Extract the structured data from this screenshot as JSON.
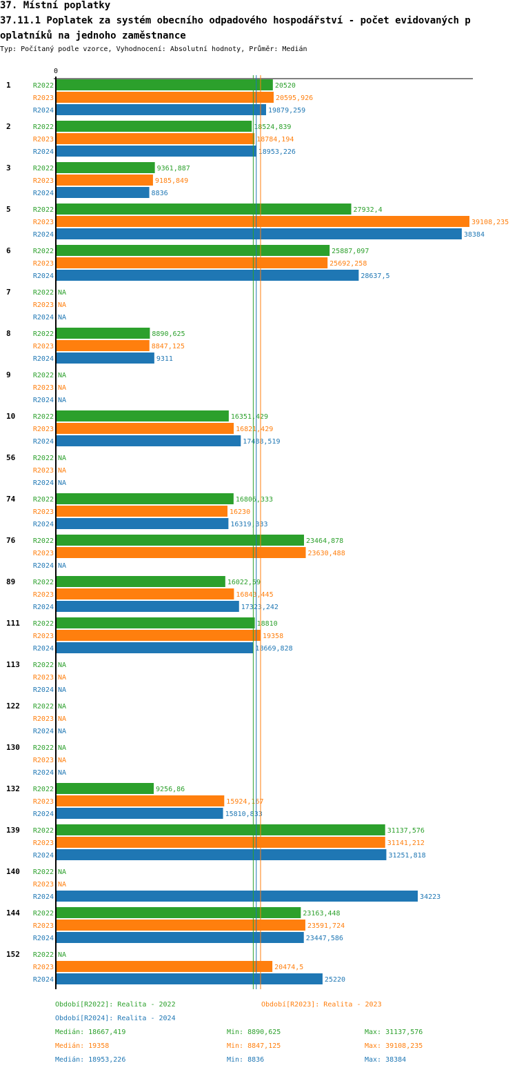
{
  "header": {
    "section_title": "37. Místní poplatky",
    "chart_title_line1": "37.11.1 Poplatek za systém obecního odpadového hospodářství - počet evidovaných p",
    "chart_title_line2": "oplatníků na jednoho zaměstnance",
    "subtitle": "Typ: Počítaný podle vzorce, Vyhodnocení: Absolutní hodnoty, Průměr: Medián"
  },
  "colors": {
    "R2022": "#2ca02c",
    "R2023": "#ff7f0e",
    "R2024": "#1f77b4"
  },
  "chart_data": {
    "type": "bar",
    "orientation": "horizontal",
    "title": "37.11.1 Poplatek za systém obecního odpadového hospodářství - počet evidovaných poplatníků na jednoho zaměstnance",
    "axis_zero_label": "0",
    "xlim": [
      0,
      39108.235
    ],
    "na_label": "NA",
    "categories": [
      "1",
      "2",
      "3",
      "5",
      "6",
      "7",
      "8",
      "9",
      "10",
      "56",
      "74",
      "76",
      "89",
      "111",
      "113",
      "122",
      "130",
      "132",
      "139",
      "140",
      "144",
      "152"
    ],
    "series": [
      {
        "name": "R2022",
        "values": [
          20520,
          18524.839,
          9361.887,
          27932.4,
          25887.097,
          null,
          8890.625,
          null,
          16351.429,
          null,
          16806.333,
          23464.878,
          16022.59,
          18810,
          null,
          null,
          null,
          9256.86,
          31137.576,
          null,
          23163.448,
          null
        ],
        "labels": [
          "20520",
          "18524,839",
          "9361,887",
          "27932,4",
          "25887,097",
          "NA",
          "8890,625",
          "NA",
          "16351,429",
          "NA",
          "16806,333",
          "23464,878",
          "16022,59",
          "18810",
          "NA",
          "NA",
          "NA",
          "9256,86",
          "31137,576",
          "NA",
          "23163,448",
          "NA"
        ]
      },
      {
        "name": "R2023",
        "values": [
          20595.926,
          18784.194,
          9185.849,
          39108.235,
          25692.258,
          null,
          8847.125,
          null,
          16821.429,
          null,
          16230,
          23630.488,
          16843.445,
          19358,
          null,
          null,
          null,
          15924.167,
          31141.212,
          null,
          23591.724,
          20474.5
        ],
        "labels": [
          "20595,926",
          "18784,194",
          "9185,849",
          "39108,235",
          "25692,258",
          "NA",
          "8847,125",
          "NA",
          "16821,429",
          "NA",
          "16230",
          "23630,488",
          "16843,445",
          "19358",
          "NA",
          "NA",
          "NA",
          "15924,167",
          "31141,212",
          "NA",
          "23591,724",
          "20474,5"
        ]
      },
      {
        "name": "R2024",
        "values": [
          19879.259,
          18953.226,
          8836,
          38384,
          28637.5,
          null,
          9311,
          null,
          17488.519,
          null,
          16319.333,
          null,
          17323.242,
          18669.828,
          null,
          null,
          null,
          15810.833,
          31251.818,
          34223,
          23447.586,
          25220
        ],
        "labels": [
          "19879,259",
          "18953,226",
          "8836",
          "38384",
          "28637,5",
          "NA",
          "9311",
          "NA",
          "17488,519",
          "NA",
          "16319,333",
          "NA",
          "17323,242",
          "18669,828",
          "NA",
          "NA",
          "NA",
          "15810,833",
          "31251,818",
          "34223",
          "23447,586",
          "25220"
        ]
      }
    ],
    "medians": {
      "R2022": 18667.419,
      "R2023": 19358,
      "R2024": 18953.226
    },
    "legend": {
      "period_R2022": "Období[R2022]: Realita - 2022",
      "period_R2023": "Období[R2023]: Realita - 2023",
      "period_R2024": "Období[R2024]: Realita - 2024"
    },
    "stats": [
      {
        "series": "R2022",
        "median": "Medián: 18667,419",
        "min": "Min: 8890,625",
        "max": "Max: 31137,576"
      },
      {
        "series": "R2023",
        "median": "Medián: 19358",
        "min": "Min: 8847,125",
        "max": "Max: 39108,235"
      },
      {
        "series": "R2024",
        "median": "Medián: 18953,226",
        "min": "Min: 8836",
        "max": "Max: 38384"
      }
    ]
  }
}
